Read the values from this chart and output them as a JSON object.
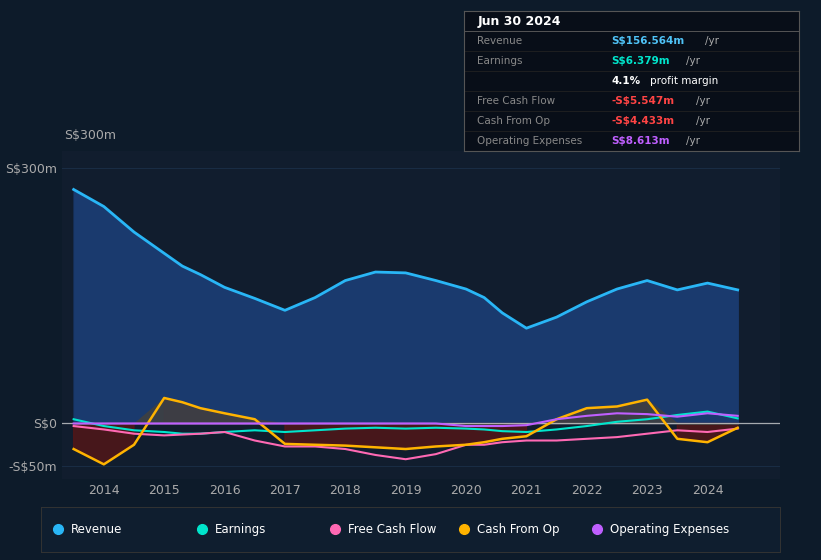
{
  "bg_color": "#0d1b2a",
  "plot_bg_color": "#111d2e",
  "grid_color": "#1a2d45",
  "zero_line_color": "#cccccc",
  "ylim": [
    -65,
    320
  ],
  "yticks_pos": [
    300,
    0,
    -50
  ],
  "ytick_labels": [
    "S$300m",
    "S$0",
    "-S$50m"
  ],
  "xlim": [
    2013.3,
    2025.2
  ],
  "xticks": [
    2014,
    2015,
    2016,
    2017,
    2018,
    2019,
    2020,
    2021,
    2022,
    2023,
    2024
  ],
  "years": [
    2013.5,
    2014.0,
    2014.5,
    2015.0,
    2015.3,
    2015.6,
    2016.0,
    2016.5,
    2017.0,
    2017.5,
    2018.0,
    2018.5,
    2019.0,
    2019.5,
    2020.0,
    2020.3,
    2020.6,
    2021.0,
    2021.5,
    2022.0,
    2022.5,
    2023.0,
    2023.5,
    2024.0,
    2024.5
  ],
  "revenue": [
    275,
    255,
    225,
    200,
    185,
    175,
    160,
    147,
    133,
    148,
    168,
    178,
    177,
    168,
    158,
    148,
    130,
    112,
    125,
    143,
    158,
    168,
    157,
    165,
    157
  ],
  "earnings": [
    5,
    -3,
    -8,
    -10,
    -12,
    -12,
    -10,
    -8,
    -10,
    -8,
    -6,
    -5,
    -6,
    -5,
    -6,
    -7,
    -9,
    -10,
    -7,
    -3,
    2,
    5,
    10,
    14,
    6
  ],
  "free_cash_flow": [
    -3,
    -7,
    -12,
    -14,
    -13,
    -12,
    -10,
    -20,
    -27,
    -27,
    -30,
    -37,
    -42,
    -36,
    -25,
    -25,
    -22,
    -20,
    -20,
    -18,
    -16,
    -12,
    -8,
    -10,
    -6
  ],
  "cash_from_op": [
    -30,
    -48,
    -25,
    30,
    25,
    18,
    12,
    5,
    -24,
    -25,
    -26,
    -28,
    -30,
    -27,
    -25,
    -22,
    -18,
    -15,
    5,
    18,
    20,
    28,
    -18,
    -22,
    -5
  ],
  "operating_expenses": [
    0,
    0,
    0,
    0,
    0,
    0,
    0,
    0,
    0,
    0,
    0,
    0,
    0,
    0,
    -3,
    -3,
    -3,
    -2,
    5,
    9,
    12,
    11,
    8,
    12,
    9
  ],
  "revenue_line_color": "#29b6f6",
  "revenue_fill_color": "#1a3a6e",
  "earnings_color": "#00e5cc",
  "free_cash_flow_color": "#ff69b4",
  "cash_from_op_color": "#ffb300",
  "operating_expenses_color": "#bf5fff",
  "info_box": {
    "title": "Jun 30 2024",
    "rows": [
      {
        "label": "Revenue",
        "value": "S$156.564m",
        "suffix": " /yr",
        "vcolor": "#4fc3f7",
        "bold_value": true
      },
      {
        "label": "Earnings",
        "value": "S$6.379m",
        "suffix": " /yr",
        "vcolor": "#00e5cc",
        "bold_value": true
      },
      {
        "label": "",
        "value": "4.1%",
        "suffix": " profit margin",
        "vcolor": "#ffffff",
        "bold_value": true
      },
      {
        "label": "Free Cash Flow",
        "value": "-S$5.547m",
        "suffix": " /yr",
        "vcolor": "#ff4444",
        "bold_value": true
      },
      {
        "label": "Cash From Op",
        "value": "-S$4.433m",
        "suffix": " /yr",
        "vcolor": "#ff4444",
        "bold_value": true
      },
      {
        "label": "Operating Expenses",
        "value": "S$8.613m",
        "suffix": " /yr",
        "vcolor": "#bf5fff",
        "bold_value": true
      }
    ]
  },
  "legend": [
    {
      "label": "Revenue",
      "color": "#29b6f6"
    },
    {
      "label": "Earnings",
      "color": "#00e5cc"
    },
    {
      "label": "Free Cash Flow",
      "color": "#ff69b4"
    },
    {
      "label": "Cash From Op",
      "color": "#ffb300"
    },
    {
      "label": "Operating Expenses",
      "color": "#bf5fff"
    }
  ]
}
